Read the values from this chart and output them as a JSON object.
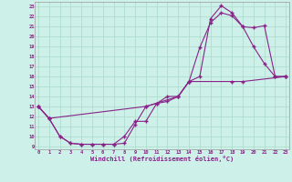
{
  "xlabel": "Windchill (Refroidissement éolien,°C)",
  "xlim": [
    0,
    23
  ],
  "ylim": [
    9,
    23
  ],
  "xticks": [
    0,
    1,
    2,
    3,
    4,
    5,
    6,
    7,
    8,
    9,
    10,
    11,
    12,
    13,
    14,
    15,
    16,
    17,
    18,
    19,
    20,
    21,
    22,
    23
  ],
  "yticks": [
    9,
    10,
    11,
    12,
    13,
    14,
    15,
    16,
    17,
    18,
    19,
    20,
    21,
    22,
    23
  ],
  "background_color": "#cdf0e8",
  "grid_color": "#b0ddd0",
  "line_color": "#882288",
  "line1_x": [
    0,
    1,
    2,
    3,
    4,
    5,
    6,
    7,
    8,
    9,
    10,
    11,
    12,
    13,
    14,
    15,
    16,
    17,
    18,
    19,
    20,
    21,
    22,
    23
  ],
  "line1_y": [
    13,
    11.8,
    10,
    9.3,
    9.2,
    9.2,
    9.2,
    9.2,
    9.3,
    11.2,
    13.0,
    13.3,
    14.0,
    14.0,
    15.5,
    16.0,
    21.8,
    23.1,
    22.4,
    21.0,
    19.0,
    17.3,
    16.0,
    16.0
  ],
  "line1_markers": [
    0,
    1,
    2,
    3,
    4,
    5,
    6,
    7,
    8,
    9,
    10,
    11,
    12,
    13,
    14,
    15,
    16,
    17,
    18,
    19,
    20,
    21,
    22,
    23
  ],
  "line2_x": [
    0,
    1,
    2,
    3,
    4,
    5,
    6,
    7,
    8,
    9,
    10,
    11,
    12,
    13,
    14,
    15,
    16,
    17,
    18,
    19,
    20,
    21,
    22,
    23
  ],
  "line2_y": [
    13,
    11.8,
    10,
    9.3,
    9.2,
    9.2,
    9.2,
    9.2,
    10.0,
    11.5,
    11.5,
    13.3,
    13.5,
    14.0,
    15.5,
    18.9,
    21.4,
    22.4,
    22.1,
    21.0,
    20.9,
    21.1,
    16.0,
    16.0
  ],
  "line2_markers": [
    0,
    1,
    2,
    3,
    4,
    5,
    6,
    7,
    8,
    9,
    10,
    11,
    12,
    13,
    14,
    15,
    16,
    17,
    18,
    19,
    20,
    21,
    22,
    23
  ],
  "line3_x": [
    0,
    1,
    10,
    13,
    14,
    18,
    19,
    23
  ],
  "line3_y": [
    13,
    11.8,
    13.0,
    14.0,
    15.5,
    15.5,
    15.5,
    16.0
  ]
}
